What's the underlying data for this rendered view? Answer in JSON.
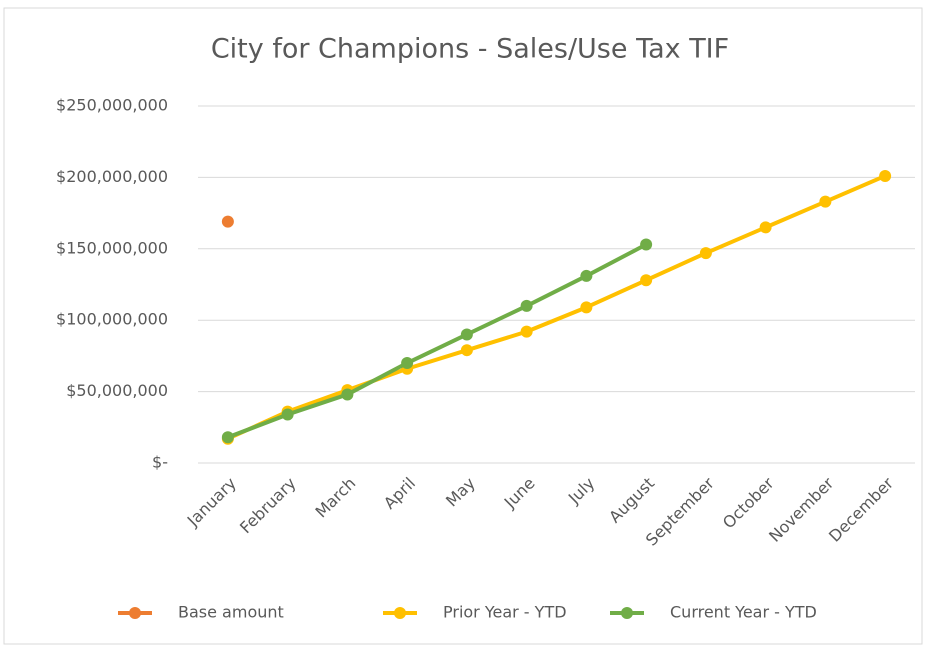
{
  "chart_data": {
    "type": "line",
    "title": "City for Champions - Sales/Use Tax TIF",
    "categories": [
      "January",
      "February",
      "March",
      "April",
      "May",
      "June",
      "July",
      "August",
      "September",
      "October",
      "November",
      "December"
    ],
    "series": [
      {
        "name": "Base amount",
        "color": "#ed7d31",
        "values": [
          169000000,
          null,
          null,
          null,
          null,
          null,
          null,
          null,
          null,
          null,
          null,
          null
        ]
      },
      {
        "name": "Prior Year - YTD",
        "color": "#ffc000",
        "values": [
          17000000,
          36000000,
          51000000,
          66000000,
          79000000,
          92000000,
          109000000,
          128000000,
          147000000,
          165000000,
          183000000,
          201000000
        ]
      },
      {
        "name": "Current Year - YTD",
        "color": "#70ad47",
        "values": [
          18000000,
          34000000,
          48000000,
          70000000,
          90000000,
          110000000,
          131000000,
          153000000,
          null,
          null,
          null,
          null
        ]
      }
    ],
    "ylim": [
      0,
      250000000
    ],
    "yticks": [
      {
        "value": 0,
        "label": "$-"
      },
      {
        "value": 50000000,
        "label": "$50,000,000"
      },
      {
        "value": 100000000,
        "label": "$100,000,000"
      },
      {
        "value": 150000000,
        "label": "$150,000,000"
      },
      {
        "value": 200000000,
        "label": "$200,000,000"
      },
      {
        "value": 250000000,
        "label": "$250,000,000"
      }
    ],
    "grid": true,
    "legend": "bottom"
  }
}
